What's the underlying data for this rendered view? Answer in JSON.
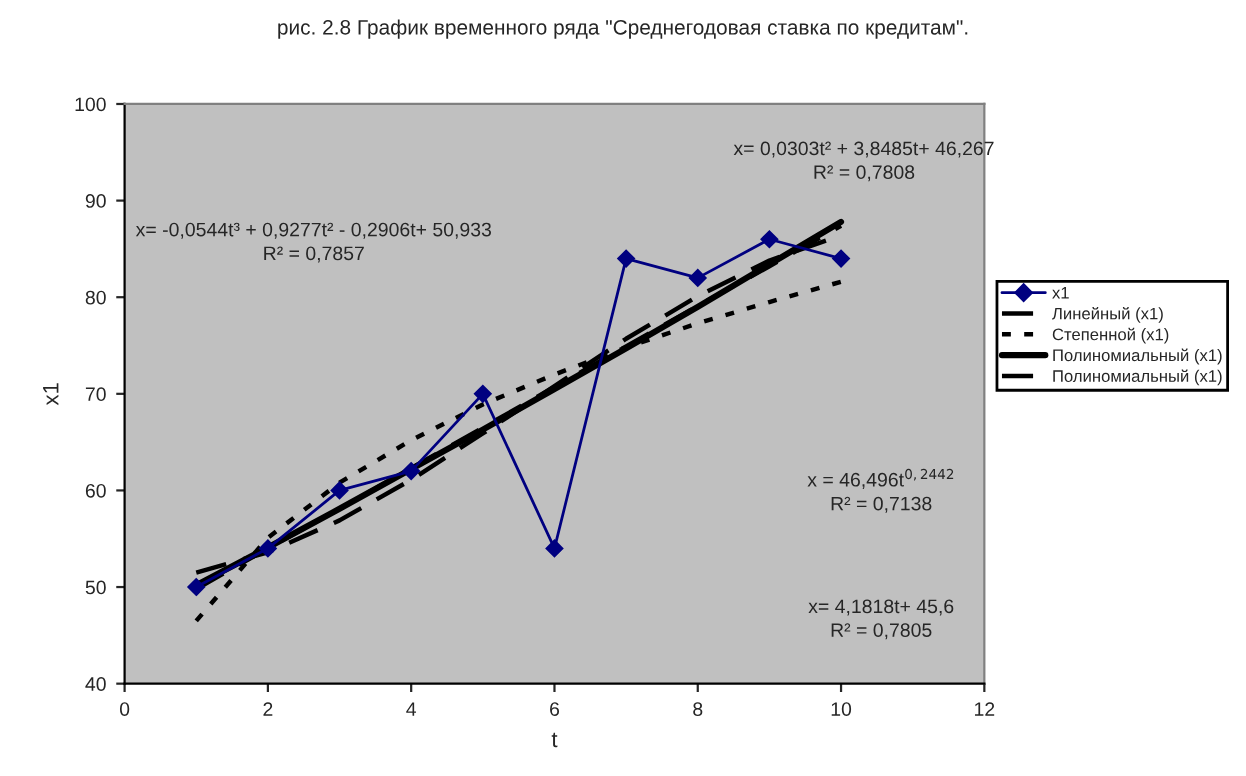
{
  "chart_data": {
    "type": "line",
    "title": "рис. 2.8 График временного ряда \"Среднегодовая ставка по кредитам\".",
    "xlabel": "t",
    "ylabel": "x1",
    "x": [
      1,
      2,
      3,
      4,
      5,
      6,
      7,
      8,
      9,
      10
    ],
    "series": [
      {
        "name": "x1",
        "color": "#000080",
        "values": [
          50,
          54,
          60,
          62,
          70,
          54,
          84,
          82,
          86,
          84
        ],
        "marker": "diamond",
        "line_style": "solid"
      },
      {
        "name": "Линейный (x1)",
        "color": "#000000",
        "values": [
          49.8,
          54.0,
          58.1,
          62.3,
          66.5,
          70.7,
          74.9,
          79.1,
          83.2,
          87.4
        ],
        "marker": "none",
        "line_style": "dashed"
      },
      {
        "name": "Степенной (x1)",
        "color": "#000000",
        "values": [
          46.5,
          55.1,
          60.8,
          65.2,
          68.9,
          72.0,
          74.8,
          77.3,
          79.5,
          81.6
        ],
        "marker": "none",
        "line_style": "dotted"
      },
      {
        "name": "Полиномиальный (x1)",
        "color": "#000000",
        "values": [
          50.2,
          54.1,
          58.1,
          62.2,
          66.3,
          70.5,
          74.7,
          79.0,
          83.4,
          87.8
        ],
        "marker": "none",
        "line_style": "solid"
      },
      {
        "name": "Полиномиальный (x1)",
        "color": "#000000",
        "values": [
          51.5,
          53.6,
          56.9,
          61.1,
          65.9,
          70.8,
          75.7,
          80.1,
          83.8,
          86.4
        ],
        "marker": "none",
        "line_style": "dashed"
      }
    ],
    "xlim": [
      0,
      12
    ],
    "xticks": [
      0,
      2,
      4,
      6,
      8,
      10,
      12
    ],
    "ylim": [
      40,
      100
    ],
    "yticks": [
      40,
      50,
      60,
      70,
      80,
      90,
      100
    ],
    "grid": false,
    "legend": "right",
    "annotations": [
      "x= -0,0544t³ + 0,9277t² - 0,2906t+ 50,933\nR² = 0,7857",
      "x= 0,0303t² + 3,8485t+ 46,267\nR² = 0,7808",
      "x = 46,496t$^{0,2442}$\nR² = 0,7138",
      "x= 4,1818t+ 45,6\nR² = 0,7805"
    ]
  }
}
